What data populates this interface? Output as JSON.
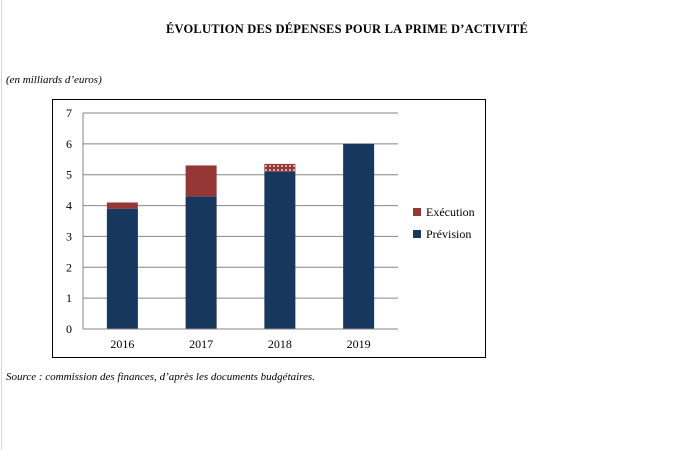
{
  "title": "ÉVOLUTION DES DÉPENSES POUR LA PRIME D’ACTIVITÉ",
  "unit_note": "(en milliards d’euros)",
  "source_note": "Source : commission des finances, d’après les documents budgétaires.",
  "colors": {
    "prevision": "#17375e",
    "execution": "#953735",
    "pattern_dot": "#ffffff"
  },
  "chart_data": {
    "type": "bar",
    "stacked": true,
    "categories": [
      "2016",
      "2017",
      "2018",
      "2019"
    ],
    "series": [
      {
        "name": "Prévision",
        "values": [
          3.9,
          4.3,
          5.1,
          6.0
        ]
      },
      {
        "name": "Exécution",
        "values": [
          0.2,
          1.0,
          0.25,
          0.0
        ],
        "pattern": [
          "solid",
          "solid",
          "dotted",
          "solid"
        ]
      }
    ],
    "ylim": [
      0,
      7
    ],
    "yticks": [
      0,
      1,
      2,
      3,
      4,
      5,
      6,
      7
    ],
    "grid": true,
    "legend_position": "right",
    "legend_order": [
      "Exécution",
      "Prévision"
    ]
  }
}
